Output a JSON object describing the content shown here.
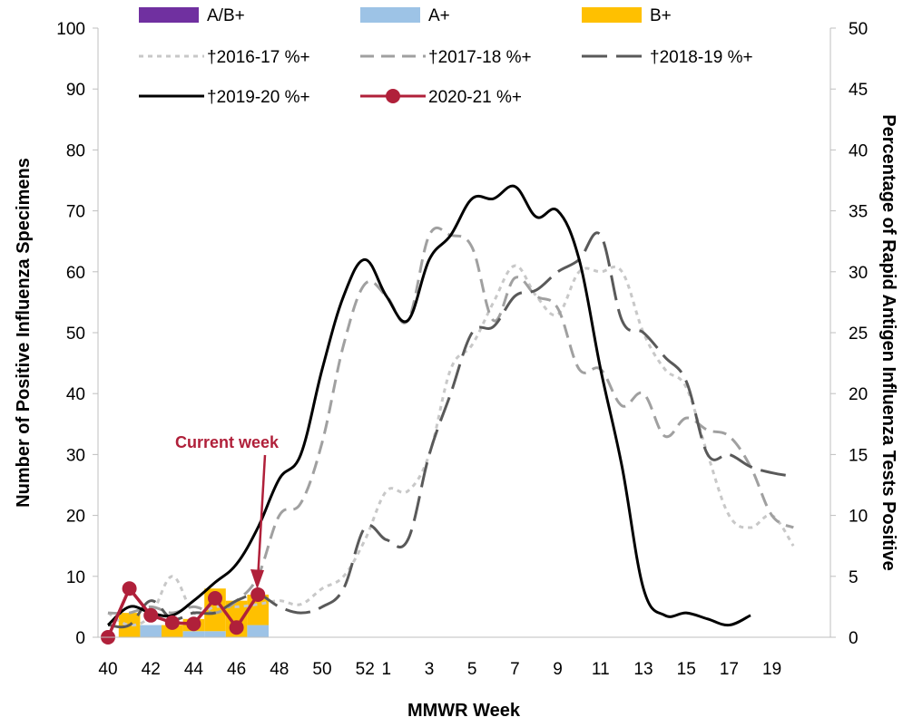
{
  "chart_data": {
    "type": "bar+line",
    "xlabel": "MMWR Week",
    "ylabel_left": "Number of Positive Influenza Specimens",
    "ylabel_right": "Percentage of Rapid Antigen Influenza Tests Positive",
    "ylim_left": [
      0,
      100
    ],
    "ylim_right": [
      0,
      50
    ],
    "yticks_left": [
      "0",
      "10",
      "20",
      "30",
      "40",
      "50",
      "60",
      "70",
      "80",
      "90",
      "100"
    ],
    "yticks_right": [
      "0",
      "5",
      "10",
      "15",
      "20",
      "25",
      "30",
      "35",
      "40",
      "45",
      "50"
    ],
    "weeks": [
      "40",
      "41",
      "42",
      "43",
      "44",
      "45",
      "46",
      "47",
      "48",
      "49",
      "50",
      "51",
      "52",
      "1",
      "2",
      "3",
      "4",
      "5",
      "6",
      "7",
      "8",
      "9",
      "10",
      "11",
      "12",
      "13",
      "14",
      "15",
      "16",
      "17",
      "18",
      "19",
      "20"
    ],
    "xtick_labels": [
      "40",
      "42",
      "44",
      "46",
      "48",
      "50",
      "52",
      "1",
      "3",
      "5",
      "7",
      "9",
      "11",
      "13",
      "15",
      "17",
      "19"
    ],
    "bars": {
      "categories": [
        "40",
        "41",
        "42",
        "43",
        "44",
        "45",
        "46",
        "47"
      ],
      "series": [
        {
          "name": "A/B+",
          "color": "#7030a0",
          "values": [
            0,
            0,
            0,
            0,
            0,
            0,
            0,
            0
          ]
        },
        {
          "name": "A+",
          "color": "#9dc3e6",
          "values": [
            0,
            0,
            2,
            0,
            1,
            1,
            0,
            2
          ]
        },
        {
          "name": "B+",
          "color": "#ffc000",
          "values": [
            0,
            4,
            0,
            2,
            2,
            7,
            6,
            5
          ]
        }
      ]
    },
    "lines": [
      {
        "name": "†2016-17 %+",
        "color": "#c8c8c8",
        "dash": "5,5",
        "values": [
          2,
          1,
          1.8,
          5,
          2,
          2.5,
          2.5,
          2.7,
          3,
          2.7,
          4,
          5,
          8,
          12,
          12,
          15,
          22,
          24,
          27.5,
          30.5,
          28,
          26.5,
          30,
          30,
          30,
          25,
          22,
          20.5,
          15,
          10,
          9,
          10,
          7.5
        ]
      },
      {
        "name": "†2017-18 %+",
        "color": "#a0a0a0",
        "dash": "15,8",
        "values": [
          2,
          2,
          2.5,
          2,
          2.5,
          2,
          3,
          5,
          10,
          11,
          16,
          24,
          29,
          28,
          26,
          33,
          33,
          32,
          26,
          29.5,
          28,
          27,
          22,
          22,
          19,
          20,
          16.5,
          18,
          17,
          16.5,
          14,
          10,
          9
        ]
      },
      {
        "name": "†2018-19 %+",
        "color": "#595959",
        "dash": "28,10",
        "values": [
          1,
          1,
          3,
          1.5,
          2,
          2,
          3,
          3.5,
          2.5,
          2,
          2.5,
          4,
          9,
          8,
          8,
          15,
          20,
          25,
          25.5,
          28,
          28.5,
          30,
          31,
          33,
          26,
          25,
          23,
          21,
          15,
          15,
          14,
          13.5,
          13.2
        ]
      },
      {
        "name": "†2019-20 %+",
        "color": "#000000",
        "dash": "",
        "values": [
          1,
          2.5,
          2,
          1.8,
          3,
          4.5,
          6,
          9,
          13,
          15,
          22,
          28,
          31,
          28,
          26,
          31,
          33,
          36,
          36,
          37,
          34.5,
          35,
          31,
          22,
          14,
          4,
          1.8,
          2,
          1.5,
          1,
          1.8
        ]
      },
      {
        "name": "2020-21 %+",
        "color": "#b0203a",
        "dash": "",
        "marker": true,
        "values": [
          0,
          4,
          1.8,
          1.2,
          1.1,
          3.2,
          0.8,
          3.5
        ]
      }
    ],
    "annotation": {
      "text": "Current week",
      "color": "#b0203a",
      "week": "47"
    }
  }
}
